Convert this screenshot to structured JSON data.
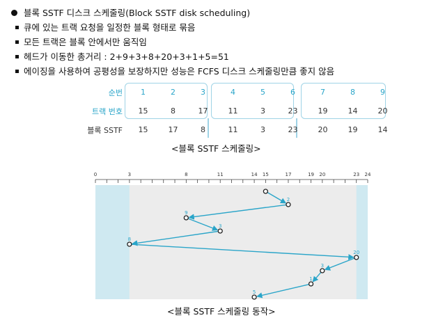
{
  "lines": [
    {
      "marker": "circle",
      "text": "블록 SSTF 디스크 스케줄링(Block SSTF disk scheduling)"
    },
    {
      "marker": "square",
      "text": "큐에 있는 트랙 요청을 일정한 블록 형태로 묶음"
    },
    {
      "marker": "square",
      "text": "모든 트랙은 블록 안에서만 움직임"
    },
    {
      "marker": "square",
      "text": "헤드가 이동한 총거리 : 2+9+3+8+20+3+1+5=51"
    },
    {
      "marker": "square",
      "text": "에이징을 사용하여 공평성을 보장하지만 성능은 FCFS 디스크 스케줄링만큼 좋지 않음"
    }
  ],
  "table": {
    "rows": [
      {
        "label": "순번",
        "cells": [
          "1",
          "2",
          "3",
          "4",
          "5",
          "6",
          "7",
          "8",
          "9"
        ]
      },
      {
        "label": "트랙 번호",
        "cells": [
          "15",
          "8",
          "17",
          "11",
          "3",
          "23",
          "19",
          "14",
          "20"
        ]
      },
      {
        "label": "블록 SSTF",
        "cells": [
          "15",
          "17",
          "8",
          "11",
          "3",
          "23",
          "20",
          "19",
          "14"
        ]
      }
    ]
  },
  "caption1": "<블록 SSTF 스케줄링>",
  "caption2": "<블록 SSTF 스케줄링 동작>",
  "chart_data": {
    "type": "line",
    "title": "",
    "x_ticks": [
      "0",
      "3",
      "8",
      "11",
      "14",
      "15",
      "17",
      "19",
      "20",
      "23",
      "24"
    ],
    "xlim": [
      0,
      24
    ],
    "highlighted_track_ranges": [
      [
        0,
        3
      ],
      [
        23,
        24
      ]
    ],
    "points": [
      {
        "track": 15,
        "label": ""
      },
      {
        "track": 17,
        "label": "2"
      },
      {
        "track": 8,
        "label": "9"
      },
      {
        "track": 11,
        "label": "3"
      },
      {
        "track": 3,
        "label": "8"
      },
      {
        "track": 23,
        "label": "20"
      },
      {
        "track": 20,
        "label": "3"
      },
      {
        "track": 19,
        "label": "1"
      },
      {
        "track": 14,
        "label": "5"
      }
    ]
  },
  "colors": {
    "accent": "#2aa5c9",
    "panel": "#ececec",
    "edge": "#cfe9f1",
    "line": "#2aa5c9"
  }
}
